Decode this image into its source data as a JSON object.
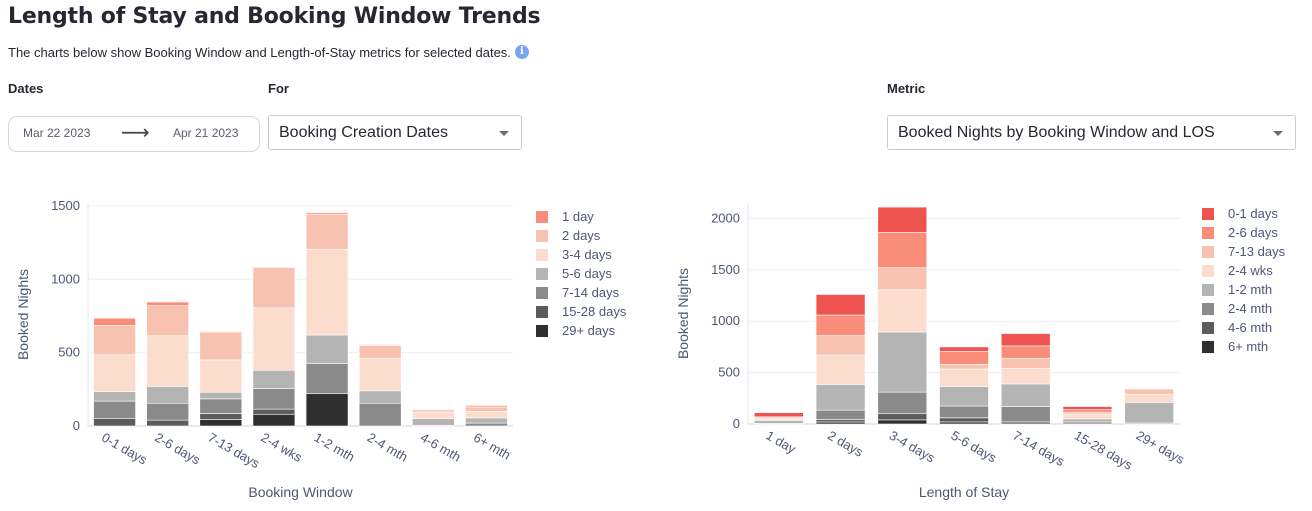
{
  "header": {
    "title": "Length of Stay and Booking Window Trends",
    "subtitle": "The charts below show Booking Window and Length-of-Stay metrics for selected dates.",
    "info_icon": "info-icon"
  },
  "controls": {
    "dates_label": "Dates",
    "date_start": "Mar 22 2023",
    "date_end": "Apr 21 2023",
    "arrow_icon": "arrow-right-icon",
    "for_label": "For",
    "for_value": "Booking Creation Dates",
    "metric_label": "Metric",
    "metric_value": "Booked Nights by Booking Window and LOS"
  },
  "colors": {
    "lt1": "#ef5350",
    "lt2": "#fa8c7a",
    "lt3": "#f7c2b0",
    "lt4": "#fcdccd",
    "mid": "#b4b4b4",
    "dk1": "#8a8a8a",
    "dk2": "#5c5c5c",
    "dk3": "#2f2f2f"
  },
  "chart_data": [
    {
      "type": "bar",
      "stacked": true,
      "xlabel": "Booking Window",
      "ylabel": "Booked Nights",
      "ylim": [
        0,
        1520
      ],
      "yticks": [
        0,
        500,
        1000,
        1500
      ],
      "legend_position": "right",
      "categories": [
        "0-1 days",
        "2-6 days",
        "7-13 days",
        "2-4 wks",
        "1-2 mth",
        "2-4 mth",
        "4-6 mth",
        "6+ mth"
      ],
      "series": [
        {
          "name": "29+ days",
          "color": "#2f2f2f",
          "values": [
            0,
            0,
            45,
            80,
            220,
            0,
            0,
            0
          ]
        },
        {
          "name": "15-28 days",
          "color": "#5c5c5c",
          "values": [
            50,
            40,
            40,
            35,
            0,
            0,
            0,
            0
          ]
        },
        {
          "name": "7-14 days",
          "color": "#8a8a8a",
          "values": [
            120,
            115,
            100,
            140,
            205,
            155,
            5,
            20
          ]
        },
        {
          "name": "5-6 days",
          "color": "#b4b4b4",
          "values": [
            65,
            115,
            45,
            125,
            195,
            85,
            45,
            35
          ]
        },
        {
          "name": "3-4 days",
          "color": "#fcdccd",
          "values": [
            250,
            345,
            220,
            425,
            585,
            220,
            45,
            45
          ]
        },
        {
          "name": "2 days",
          "color": "#f7c2b0",
          "values": [
            200,
            205,
            190,
            275,
            240,
            90,
            15,
            30
          ]
        },
        {
          "name": "1 day",
          "color": "#fa8c7a",
          "values": [
            50,
            25,
            5,
            5,
            10,
            5,
            5,
            10
          ]
        }
      ]
    },
    {
      "type": "bar",
      "stacked": true,
      "xlabel": "Length of Stay",
      "ylabel": "Booked Nights",
      "ylim": [
        0,
        2150
      ],
      "yticks": [
        0,
        500,
        1000,
        1500,
        2000
      ],
      "legend_position": "right",
      "categories": [
        "1 day",
        "2 days",
        "3-4 days",
        "5-6 days",
        "7-14 days",
        "15-28 days",
        "29+ days"
      ],
      "series": [
        {
          "name": "6+ mth",
          "color": "#2f2f2f",
          "values": [
            0,
            20,
            40,
            20,
            0,
            0,
            0
          ]
        },
        {
          "name": "4-6 mth",
          "color": "#5c5c5c",
          "values": [
            0,
            25,
            60,
            40,
            20,
            0,
            0
          ]
        },
        {
          "name": "2-4 mth",
          "color": "#8a8a8a",
          "values": [
            5,
            90,
            210,
            115,
            150,
            20,
            10
          ]
        },
        {
          "name": "1-2 mth",
          "color": "#b4b4b4",
          "values": [
            30,
            250,
            585,
            190,
            220,
            30,
            200
          ]
        },
        {
          "name": "2-4 wks",
          "color": "#fcdccd",
          "values": [
            15,
            285,
            410,
            170,
            150,
            45,
            80
          ]
        },
        {
          "name": "7-13 days",
          "color": "#f7c2b0",
          "values": [
            10,
            190,
            215,
            45,
            100,
            20,
            50
          ]
        },
        {
          "name": "2-6 days",
          "color": "#fa8c7a",
          "values": [
            10,
            200,
            345,
            125,
            120,
            25,
            0
          ]
        },
        {
          "name": "0-1 days",
          "color": "#ef5350",
          "values": [
            40,
            200,
            245,
            45,
            120,
            30,
            0
          ]
        }
      ]
    }
  ],
  "legend_order": [
    [
      "1 day",
      "2 days",
      "3-4 days",
      "5-6 days",
      "7-14 days",
      "15-28 days",
      "29+ days"
    ],
    [
      "0-1 days",
      "2-6 days",
      "7-13 days",
      "2-4 wks",
      "1-2 mth",
      "2-4 mth",
      "4-6 mth",
      "6+ mth"
    ]
  ]
}
